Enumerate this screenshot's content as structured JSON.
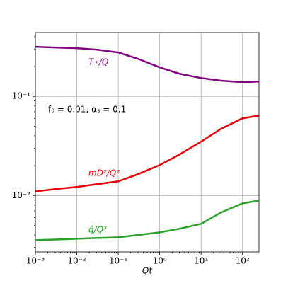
{
  "chart_data": {
    "type": "line",
    "x_label": "Qt",
    "xscale": "log",
    "yscale": "log",
    "grid": true,
    "xlim": [
      0.001,
      250
    ],
    "ylim": [
      0.0027,
      0.44
    ],
    "xticks": [
      {
        "value": 0.001,
        "label": "10⁻³"
      },
      {
        "value": 0.01,
        "label": "10⁻²"
      },
      {
        "value": 0.1,
        "label": "10⁻¹"
      },
      {
        "value": 1,
        "label": "10⁰"
      },
      {
        "value": 10,
        "label": "10¹"
      },
      {
        "value": 100,
        "label": "10²"
      }
    ],
    "yticks": [
      {
        "value": 0.01,
        "label": "10⁻²"
      },
      {
        "value": 0.1,
        "label": "10⁻¹"
      }
    ],
    "annotation": "f₀ = 0.01, αₛ = 0.1",
    "x": [
      0.001,
      0.003,
      0.01,
      0.03,
      0.1,
      0.3,
      1,
      3,
      10,
      30,
      100,
      250
    ],
    "series": [
      {
        "name": "T⋆/Q",
        "color": "#800080",
        "values": [
          0.316,
          0.311,
          0.306,
          0.296,
          0.277,
          0.239,
          0.196,
          0.169,
          0.153,
          0.144,
          0.139,
          0.141
        ]
      },
      {
        "name": "mD²/Q²",
        "color": "#e8000b",
        "values": [
          0.011,
          0.0116,
          0.0122,
          0.013,
          0.0139,
          0.0164,
          0.0203,
          0.0259,
          0.0349,
          0.0469,
          0.06,
          0.064
        ]
      },
      {
        "name": "q̂/Q³",
        "color": "#2ca02c",
        "values": [
          0.00355,
          0.0036,
          0.00367,
          0.00373,
          0.00379,
          0.004,
          0.00425,
          0.00462,
          0.00518,
          0.00674,
          0.00834,
          0.0089
        ]
      }
    ]
  }
}
